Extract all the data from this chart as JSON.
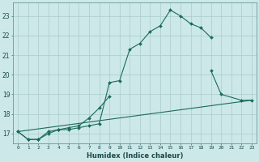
{
  "xlabel": "Humidex (Indice chaleur)",
  "bg_color": "#cce8e8",
  "grid_color": "#aacccc",
  "line_color": "#1a6b5a",
  "xlim": [
    -0.5,
    23.5
  ],
  "ylim": [
    16.5,
    23.7
  ],
  "yticks": [
    17,
    18,
    19,
    20,
    21,
    22,
    23
  ],
  "xticks": [
    0,
    1,
    2,
    3,
    4,
    5,
    6,
    7,
    8,
    9,
    10,
    11,
    12,
    13,
    14,
    15,
    16,
    17,
    18,
    19,
    20,
    21,
    22,
    23
  ],
  "series": [
    {
      "x": [
        0,
        1,
        2,
        3,
        4,
        5,
        6,
        7,
        8,
        9,
        10,
        11,
        12,
        13,
        14,
        15,
        16,
        17,
        18,
        19
      ],
      "y": [
        17.1,
        16.7,
        16.7,
        17.0,
        17.2,
        17.2,
        17.3,
        17.4,
        17.5,
        19.6,
        19.7,
        21.3,
        21.6,
        22.2,
        22.5,
        23.3,
        23.0,
        22.6,
        22.4,
        21.9
      ],
      "marker": "D",
      "markersize": 2.0,
      "linewidth": 0.8
    },
    {
      "x": [
        0,
        1,
        2,
        3,
        4,
        5,
        6,
        7,
        8,
        9
      ],
      "y": [
        17.1,
        16.7,
        16.7,
        17.1,
        17.2,
        17.3,
        17.4,
        17.8,
        18.3,
        18.9
      ],
      "marker": "D",
      "markersize": 2.0,
      "linewidth": 0.8
    },
    {
      "x": [
        19,
        20,
        22,
        23
      ],
      "y": [
        20.2,
        19.0,
        18.7,
        18.7
      ],
      "marker": "D",
      "markersize": 2.0,
      "linewidth": 0.8
    },
    {
      "x": [
        0,
        23
      ],
      "y": [
        17.1,
        18.7
      ],
      "marker": null,
      "markersize": 0,
      "linewidth": 0.8
    }
  ]
}
